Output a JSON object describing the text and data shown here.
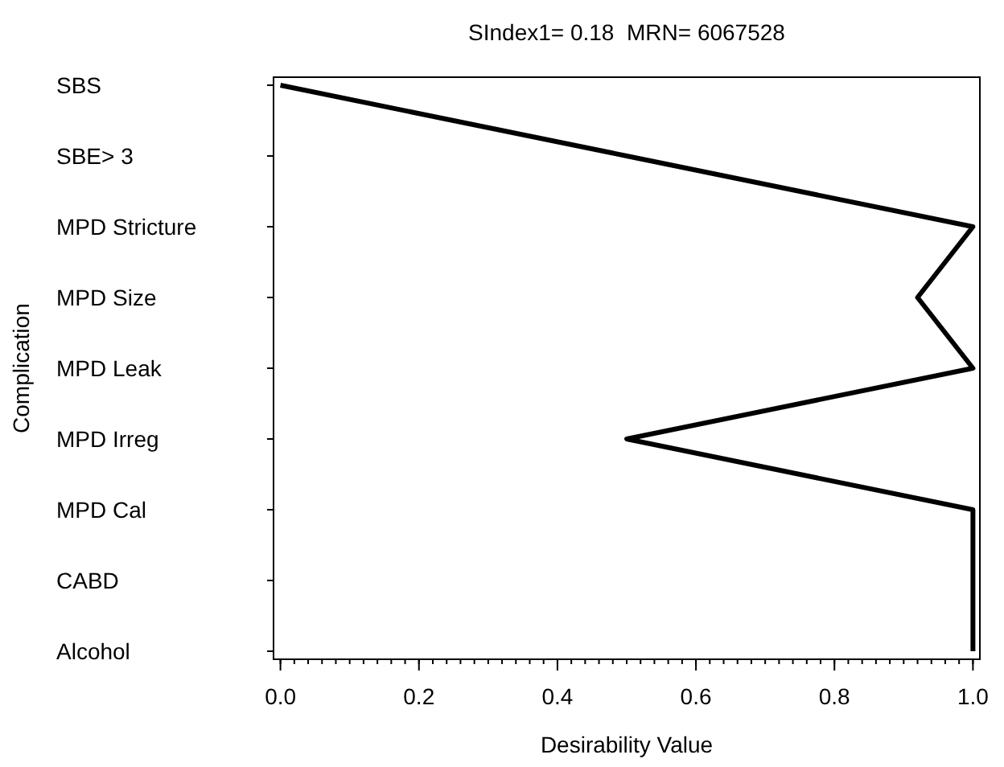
{
  "chart_data": {
    "type": "line",
    "orientation": "horizontal",
    "title": "SIndex1= 0.18  MRN= 6067528",
    "xlabel": "Desirability Value",
    "ylabel": "Complication",
    "categories": [
      "SBS",
      "SBE> 3",
      "MPD Stricture",
      "MPD Size",
      "MPD Leak",
      "MPD Irreg",
      "MPD Cal",
      "CABD",
      "Alcohol"
    ],
    "series": [
      {
        "color": "#000000",
        "values": [
          0.0,
          0.5,
          1.0,
          0.92,
          1.0,
          0.5,
          1.0,
          1.0,
          1.0
        ]
      }
    ],
    "xlim": [
      -0.01,
      1.01
    ],
    "xticks": [
      {
        "value": 0,
        "label": "0.0"
      },
      {
        "value": 0.2,
        "label": "0.2"
      },
      {
        "value": 0.4,
        "label": "0.4"
      },
      {
        "value": 0.6,
        "label": "0.6"
      },
      {
        "value": 0.8,
        "label": "0.8"
      },
      {
        "value": 1,
        "label": "1.0"
      }
    ],
    "grid": false,
    "marker": "none",
    "line_style": "solid"
  }
}
